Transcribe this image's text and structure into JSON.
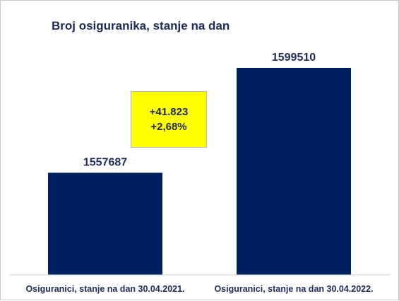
{
  "chart_data": {
    "type": "bar",
    "title": "Broj osiguranika, stanje na dan",
    "categories": [
      "Osiguranici, stanje na dan 30.04.2021.",
      "Osiguranici, stanje na dan 30.04.2022."
    ],
    "values": [
      1557687,
      1599510
    ],
    "data_labels": [
      "1557687",
      "1599510"
    ],
    "bar_color": "#002060",
    "annotation": {
      "change_abs": "+41.823",
      "change_pct": "+2,68%",
      "background": "#ffff00"
    },
    "grid": false,
    "legend": "none",
    "axis": {
      "yaxis_visible": false
    }
  }
}
